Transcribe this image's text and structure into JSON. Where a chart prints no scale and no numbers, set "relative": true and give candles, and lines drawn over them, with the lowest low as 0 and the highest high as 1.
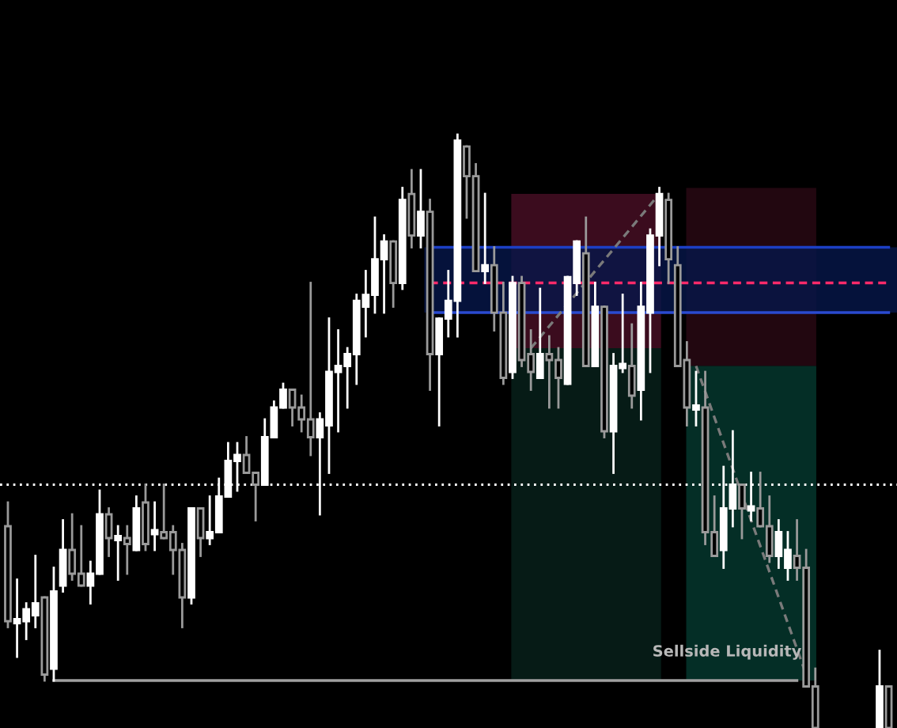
{
  "chart_data": {
    "type": "candlestick",
    "relative": true,
    "categories": [
      null,
      null,
      null,
      null,
      null,
      null,
      null,
      null,
      null,
      null,
      null,
      null,
      null,
      null,
      null,
      null,
      null,
      null,
      null,
      null,
      null,
      null,
      null,
      null,
      null,
      null,
      null,
      null,
      null,
      null,
      null,
      null,
      null,
      null,
      null,
      null,
      null,
      null,
      null,
      null,
      null,
      null,
      null,
      null,
      null,
      null,
      null,
      null,
      null,
      null,
      null,
      null,
      null,
      null,
      null,
      null,
      null,
      null,
      null,
      null,
      null,
      null,
      null,
      null,
      null,
      null,
      null,
      null,
      null,
      null,
      null,
      null,
      null,
      null,
      null,
      null,
      null,
      null,
      null,
      null,
      null,
      null,
      null,
      null,
      null,
      null,
      null,
      null,
      null,
      null,
      null,
      null,
      null,
      null,
      null,
      null,
      null
    ],
    "ohlc": [
      [
        0.34,
        0.38,
        0.17,
        0.18
      ],
      [
        0.18,
        0.25,
        0.12,
        0.18
      ],
      [
        0.18,
        0.21,
        0.15,
        0.2
      ],
      [
        0.19,
        0.29,
        0.17,
        0.21
      ],
      [
        0.22,
        0.22,
        0.08,
        0.09
      ],
      [
        0.1,
        0.27,
        0.08,
        0.23
      ],
      [
        0.24,
        0.35,
        0.23,
        0.3
      ],
      [
        0.3,
        0.36,
        0.25,
        0.26
      ],
      [
        0.26,
        0.34,
        0.24,
        0.24
      ],
      [
        0.24,
        0.28,
        0.21,
        0.26
      ],
      [
        0.26,
        0.4,
        0.26,
        0.36
      ],
      [
        0.36,
        0.37,
        0.29,
        0.32
      ],
      [
        0.32,
        0.34,
        0.25,
        0.32
      ],
      [
        0.32,
        0.34,
        0.26,
        0.31
      ],
      [
        0.3,
        0.39,
        0.3,
        0.37
      ],
      [
        0.38,
        0.41,
        0.3,
        0.31
      ],
      [
        0.33,
        0.38,
        0.3,
        0.33
      ],
      [
        0.33,
        0.41,
        0.32,
        0.32
      ],
      [
        0.33,
        0.34,
        0.26,
        0.3
      ],
      [
        0.3,
        0.31,
        0.17,
        0.22
      ],
      [
        0.22,
        0.37,
        0.21,
        0.37
      ],
      [
        0.37,
        0.37,
        0.29,
        0.32
      ],
      [
        0.32,
        0.39,
        0.31,
        0.33
      ],
      [
        0.33,
        0.42,
        0.33,
        0.39
      ],
      [
        0.39,
        0.48,
        0.39,
        0.45
      ],
      [
        0.45,
        0.48,
        0.4,
        0.46
      ],
      [
        0.46,
        0.49,
        0.43,
        0.43
      ],
      [
        0.43,
        0.43,
        0.35,
        0.41
      ],
      [
        0.41,
        0.52,
        0.41,
        0.49
      ],
      [
        0.49,
        0.55,
        0.49,
        0.54
      ],
      [
        0.54,
        0.58,
        0.54,
        0.57
      ],
      [
        0.57,
        0.57,
        0.51,
        0.54
      ],
      [
        0.54,
        0.56,
        0.5,
        0.52
      ],
      [
        0.52,
        0.75,
        0.46,
        0.49
      ],
      [
        0.49,
        0.53,
        0.36,
        0.52
      ],
      [
        0.51,
        0.69,
        0.43,
        0.6
      ],
      [
        0.6,
        0.67,
        0.5,
        0.61
      ],
      [
        0.61,
        0.64,
        0.54,
        0.63
      ],
      [
        0.63,
        0.73,
        0.58,
        0.72
      ],
      [
        0.71,
        0.77,
        0.66,
        0.73
      ],
      [
        0.73,
        0.86,
        0.7,
        0.79
      ],
      [
        0.79,
        0.83,
        0.7,
        0.82
      ],
      [
        0.82,
        0.82,
        0.71,
        0.75
      ],
      [
        0.75,
        0.91,
        0.74,
        0.89
      ],
      [
        0.9,
        0.94,
        0.81,
        0.83
      ],
      [
        0.83,
        0.94,
        0.81,
        0.87
      ],
      [
        0.87,
        0.89,
        0.57,
        0.63
      ],
      [
        0.63,
        0.69,
        0.51,
        0.69
      ],
      [
        0.69,
        0.77,
        0.66,
        0.72
      ],
      [
        0.72,
        1.0,
        0.66,
        0.99
      ],
      [
        0.98,
        0.98,
        0.86,
        0.93
      ],
      [
        0.93,
        0.95,
        0.77,
        0.77
      ],
      [
        0.77,
        0.9,
        0.75,
        0.78
      ],
      [
        0.78,
        0.81,
        0.67,
        0.7
      ],
      [
        0.7,
        0.75,
        0.58,
        0.59
      ],
      [
        0.6,
        0.76,
        0.59,
        0.75
      ],
      [
        0.75,
        0.76,
        0.61,
        0.62
      ],
      [
        0.63,
        0.67,
        0.57,
        0.6
      ],
      [
        0.59,
        0.74,
        0.59,
        0.63
      ],
      [
        0.63,
        0.66,
        0.54,
        0.62
      ],
      [
        0.62,
        0.64,
        0.54,
        0.59
      ],
      [
        0.58,
        0.76,
        0.58,
        0.76
      ],
      [
        0.75,
        0.82,
        0.73,
        0.82
      ],
      [
        0.8,
        0.86,
        0.61,
        0.61
      ],
      [
        0.61,
        0.75,
        0.61,
        0.71
      ],
      [
        0.71,
        0.71,
        0.49,
        0.5
      ],
      [
        0.5,
        0.63,
        0.43,
        0.61
      ],
      [
        0.61,
        0.73,
        0.6,
        0.61
      ],
      [
        0.61,
        0.68,
        0.54,
        0.56
      ],
      [
        0.57,
        0.75,
        0.52,
        0.71
      ],
      [
        0.7,
        0.84,
        0.6,
        0.83
      ],
      [
        0.83,
        0.91,
        0.78,
        0.9
      ],
      [
        0.89,
        0.9,
        0.75,
        0.79
      ],
      [
        0.78,
        0.81,
        0.61,
        0.61
      ],
      [
        0.62,
        0.65,
        0.51,
        0.54
      ],
      [
        0.54,
        0.6,
        0.51,
        0.54
      ],
      [
        0.54,
        0.6,
        0.31,
        0.33
      ],
      [
        0.33,
        0.39,
        0.29,
        0.29
      ],
      [
        0.3,
        0.44,
        0.27,
        0.37
      ],
      [
        0.37,
        0.5,
        0.34,
        0.41
      ],
      [
        0.41,
        0.41,
        0.32,
        0.37
      ],
      [
        0.37,
        0.43,
        0.35,
        0.37
      ],
      [
        0.37,
        0.43,
        0.34,
        0.34
      ],
      [
        0.34,
        0.39,
        0.28,
        0.29
      ],
      [
        0.29,
        0.35,
        0.27,
        0.33
      ],
      [
        0.27,
        0.33,
        0.25,
        0.3
      ],
      [
        0.29,
        0.35,
        0.25,
        0.27
      ],
      [
        0.27,
        0.3,
        0.07,
        0.07
      ],
      [
        0.07,
        0.1,
        0,
        0
      ],
      null,
      null,
      null,
      null,
      null,
      null,
      [
        0,
        0.13,
        0,
        0.07
      ],
      [
        0.07,
        0.07,
        0,
        0
      ]
    ],
    "series": [
      {
        "type": "line",
        "color": "#1c3fc4",
        "line_style": "solid",
        "values": [
          null,
          null,
          null,
          null,
          null,
          null,
          null,
          null,
          null,
          null,
          null,
          null,
          null,
          null,
          null,
          null,
          null,
          null,
          null,
          null,
          null,
          null,
          null,
          null,
          null,
          null,
          null,
          null,
          null,
          null,
          null,
          null,
          null,
          null,
          null,
          null,
          null,
          null,
          null,
          null,
          null,
          null,
          null,
          null,
          null,
          null,
          0.81,
          0.81,
          0.81,
          0.81,
          0.81,
          0.81,
          0.81,
          0.81,
          0.81,
          0.81,
          0.81,
          0.81,
          0.81,
          0.81,
          0.81,
          0.81,
          0.81,
          0.81,
          0.81,
          0.81,
          0.81,
          0.81,
          0.81,
          0.81,
          0.81,
          0.81,
          0.81,
          0.81,
          0.81,
          0.81,
          0.81,
          0.81,
          0.81,
          0.81,
          0.81,
          0.81,
          0.81,
          0.81,
          0.81,
          0.81,
          0.81,
          0.81,
          0.81,
          0.81,
          0.81,
          0.81,
          0.81,
          0.81,
          0.81,
          0.81,
          0.81
        ]
      },
      {
        "type": "line",
        "color": "#2a4ad0",
        "line_style": "solid",
        "values": [
          null,
          null,
          null,
          null,
          null,
          null,
          null,
          null,
          null,
          null,
          null,
          null,
          null,
          null,
          null,
          null,
          null,
          null,
          null,
          null,
          null,
          null,
          null,
          null,
          null,
          null,
          null,
          null,
          null,
          null,
          null,
          null,
          null,
          null,
          null,
          null,
          null,
          null,
          null,
          null,
          null,
          null,
          null,
          null,
          null,
          null,
          0.7,
          0.7,
          0.7,
          0.7,
          0.7,
          0.7,
          0.7,
          0.7,
          0.7,
          0.7,
          0.7,
          0.7,
          0.7,
          0.7,
          0.7,
          0.7,
          0.7,
          0.7,
          0.7,
          0.7,
          0.7,
          0.7,
          0.7,
          0.7,
          0.7,
          0.7,
          0.7,
          0.7,
          0.7,
          0.7,
          0.7,
          0.7,
          0.7,
          0.7,
          0.7,
          0.7,
          0.7,
          0.7,
          0.7,
          0.7,
          0.7,
          0.7,
          0.7,
          0.7,
          0.7,
          0.7,
          0.7,
          0.7,
          0.7,
          0.7,
          0.7
        ]
      },
      {
        "type": "line",
        "color": "#ff2a6a",
        "line_style": "dashed",
        "values": [
          null,
          null,
          null,
          null,
          null,
          null,
          null,
          null,
          null,
          null,
          null,
          null,
          null,
          null,
          null,
          null,
          null,
          null,
          null,
          null,
          null,
          null,
          null,
          null,
          null,
          null,
          null,
          null,
          null,
          null,
          null,
          null,
          null,
          null,
          null,
          null,
          null,
          null,
          null,
          null,
          null,
          null,
          null,
          null,
          null,
          null,
          0.75,
          0.75,
          0.75,
          0.75,
          0.75,
          0.75,
          0.75,
          0.75,
          0.75,
          0.75,
          0.75,
          0.75,
          0.75,
          0.75,
          0.75,
          0.75,
          0.75,
          0.75,
          0.75,
          0.75,
          0.75,
          0.75,
          0.75,
          0.75,
          0.75,
          0.75,
          0.75,
          0.75,
          0.75,
          0.75,
          0.75,
          0.75,
          0.75,
          0.75,
          0.75,
          0.75,
          0.75,
          0.75,
          0.75,
          0.75,
          0.75,
          0.75,
          0.75,
          0.75,
          0.75,
          0.75,
          0.75,
          0.75,
          0.75,
          0.75,
          0.75
        ]
      },
      {
        "type": "line",
        "color": "#a0a0a0",
        "line_style": "solid",
        "values": [
          null,
          null,
          null,
          null,
          null,
          0.08,
          0.08,
          0.08,
          0.08,
          0.08,
          0.08,
          0.08,
          0.08,
          0.08,
          0.08,
          0.08,
          0.08,
          0.08,
          0.08,
          0.08,
          0.08,
          0.08,
          0.08,
          0.08,
          0.08,
          0.08,
          0.08,
          0.08,
          0.08,
          0.08,
          0.08,
          0.08,
          0.08,
          0.08,
          0.08,
          0.08,
          0.08,
          0.08,
          0.08,
          0.08,
          0.08,
          0.08,
          0.08,
          0.08,
          0.08,
          0.08,
          0.08,
          0.08,
          0.08,
          0.08,
          0.08,
          0.08,
          0.08,
          0.08,
          0.08,
          0.08,
          0.08,
          0.08,
          0.08,
          0.08,
          0.08,
          0.08,
          0.08,
          0.08,
          0.08,
          0.08,
          0.08,
          0.08,
          0.08,
          0.08,
          0.08,
          0.08,
          0.08,
          0.08,
          0.08,
          0.08,
          0.08,
          0.08,
          0.08,
          0.08,
          0.08,
          0.08,
          0.08,
          0.08,
          0.08,
          0.08,
          0.08,
          null,
          null,
          null,
          null,
          null,
          null,
          null,
          null,
          null,
          null
        ]
      },
      {
        "type": "line",
        "color": "#7a7a7a",
        "line_style": "dashed",
        "values": [
          null,
          null,
          null,
          null,
          null,
          null,
          null,
          null,
          null,
          null,
          null,
          null,
          null,
          null,
          null,
          null,
          null,
          null,
          null,
          null,
          null,
          null,
          null,
          null,
          null,
          null,
          null,
          null,
          null,
          null,
          null,
          null,
          null,
          null,
          null,
          null,
          null,
          null,
          null,
          null,
          null,
          null,
          null,
          null,
          null,
          null,
          null,
          null,
          null,
          null,
          null,
          null,
          null,
          null,
          null,
          null,
          null,
          0.64,
          null,
          null,
          null,
          null,
          null,
          null,
          null,
          null,
          null,
          null,
          null,
          null,
          null,
          0.9,
          null,
          null,
          null,
          null,
          null,
          null,
          null,
          null,
          null,
          null,
          null,
          null,
          null,
          null,
          null,
          null,
          null,
          null,
          null,
          null,
          null,
          null,
          null,
          null,
          null
        ]
      },
      {
        "type": "line",
        "color": "#7a7a7a",
        "line_style": "dashed",
        "values": [
          null,
          null,
          null,
          null,
          null,
          null,
          null,
          null,
          null,
          null,
          null,
          null,
          null,
          null,
          null,
          null,
          null,
          null,
          null,
          null,
          null,
          null,
          null,
          null,
          null,
          null,
          null,
          null,
          null,
          null,
          null,
          null,
          null,
          null,
          null,
          null,
          null,
          null,
          null,
          null,
          null,
          null,
          null,
          null,
          null,
          null,
          null,
          null,
          null,
          null,
          null,
          null,
          null,
          null,
          null,
          null,
          null,
          null,
          null,
          null,
          null,
          null,
          null,
          null,
          null,
          null,
          null,
          null,
          null,
          null,
          null,
          null,
          null,
          null,
          null,
          0.61,
          null,
          null,
          null,
          null,
          null,
          null,
          null,
          null,
          null,
          null,
          null,
          0.09,
          null,
          null,
          null,
          null,
          null,
          null,
          null,
          null,
          null
        ]
      }
    ],
    "bands": [
      {
        "axis": "y",
        "from": 0.64,
        "to": 0.9,
        "color": "#4a0f25"
      },
      {
        "axis": "y",
        "from": 0.08,
        "to": 0.64,
        "color": "#07221b"
      },
      {
        "axis": "y",
        "from": 0.61,
        "to": 0.91,
        "color": "#2a0914"
      },
      {
        "axis": "y",
        "from": 0.08,
        "to": 0.61,
        "color": "#05392f"
      },
      {
        "axis": "y",
        "from": 0.7,
        "to": 0.81,
        "color": "#06164a"
      }
    ],
    "ref_lines": [
      {
        "axis": "y",
        "value": 0.41,
        "color": "#ffffff",
        "line_style": "dotted"
      }
    ],
    "annotations": [
      {
        "text": "Sellside Liquidity",
        "y": 0.08
      }
    ]
  }
}
